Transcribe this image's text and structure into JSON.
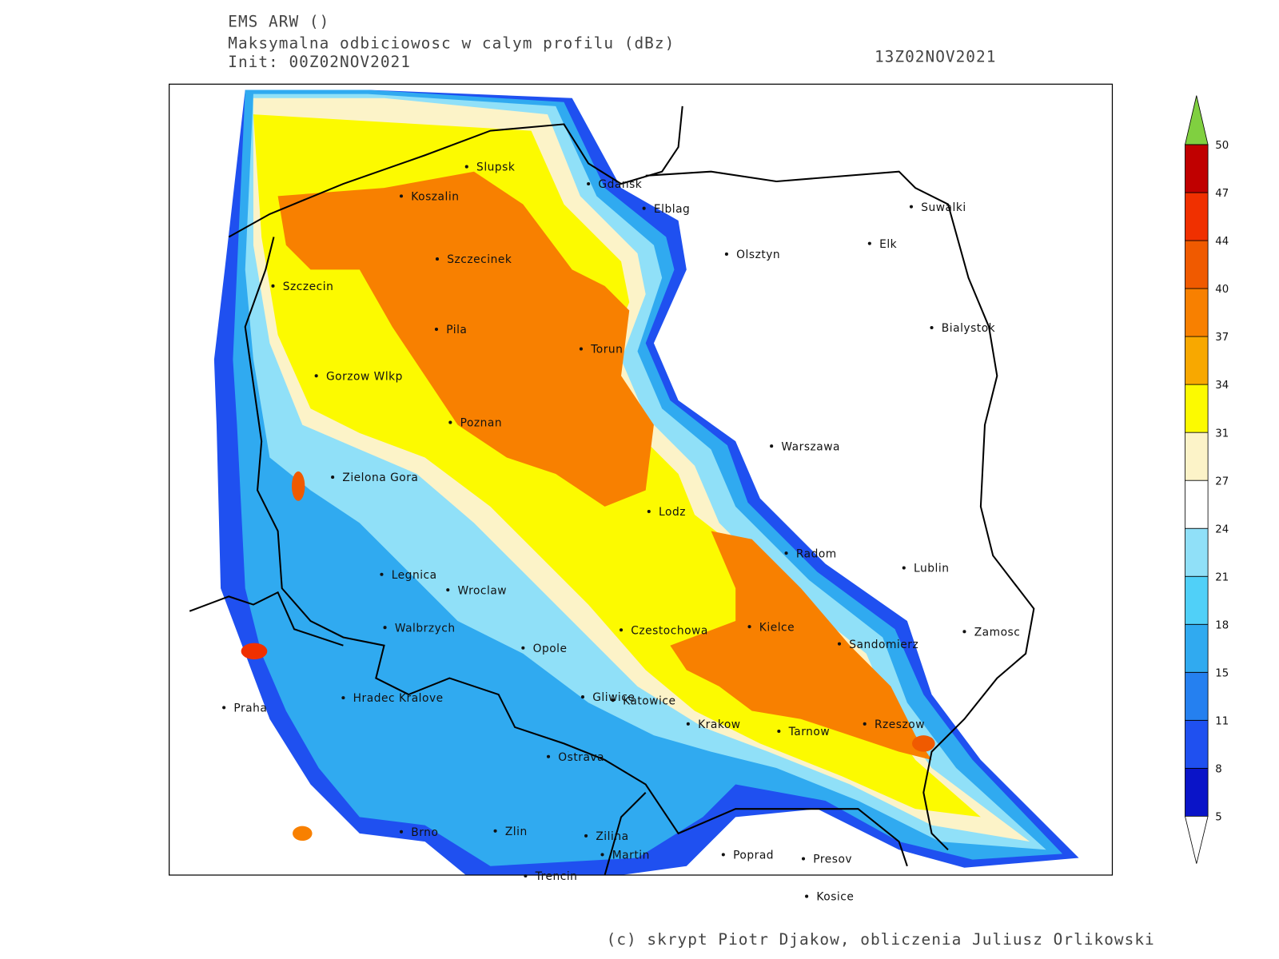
{
  "header": {
    "model": "EMS ARW ()",
    "field": "Maksymalna odbiciowosc w calym profilu (dBz)",
    "init": "Init: 00Z02NOV2021",
    "valid": "13Z02NOV2021"
  },
  "cities": [
    "Slupsk",
    "Koszalin",
    "Gdansk",
    "Elblag",
    "Suwalki",
    "Elk",
    "Olsztyn",
    "Szczecinek",
    "Szczecin",
    "Bialystok",
    "Pila",
    "Torun",
    "Gorzow Wlkp",
    "Poznan",
    "Warszawa",
    "Zielona Gora",
    "Lodz",
    "Radom",
    "Lublin",
    "Legnica",
    "Wroclaw",
    "Walbrzych",
    "Czestochowa",
    "Kielce",
    "Zamosc",
    "Sandomierz",
    "Opole",
    "Praha",
    "Hradec Kralove",
    "Gliwice",
    "Katowice",
    "Krakow",
    "Tarnow",
    "Rzeszow",
    "Ostrava",
    "Brno",
    "Zlin",
    "Zilina",
    "Martin",
    "Poprad",
    "Presov",
    "Trencin",
    "Kosice"
  ],
  "colorbar": {
    "levels": [
      5,
      8,
      11,
      15,
      18,
      21,
      24,
      27,
      31,
      34,
      37,
      40,
      44,
      47,
      50
    ],
    "colors": [
      "#0a14c8",
      "#1f50f0",
      "#2580f0",
      "#30aaf0",
      "#50d0f8",
      "#90e0f8",
      "#ffffff",
      "#fcf3c8",
      "#fcfa00",
      "#f8a800",
      "#f88000",
      "#f05a00",
      "#f03000",
      "#c00000"
    ],
    "over_color": "#80d040",
    "under_color": "#ffffff"
  },
  "footer": "(c) skrypt Piotr Djakow, obliczenia Juliusz Orlikowski"
}
